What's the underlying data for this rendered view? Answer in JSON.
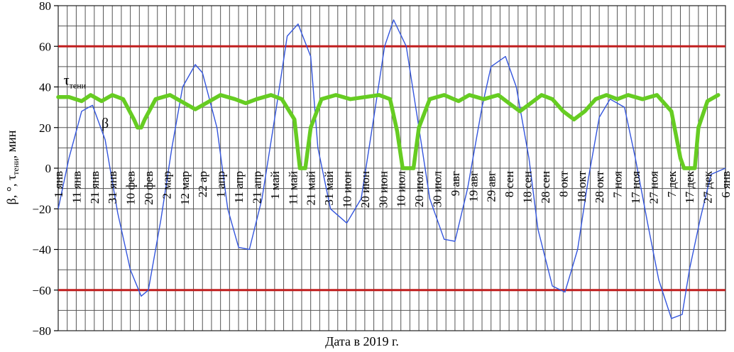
{
  "chart_data": {
    "type": "line",
    "title": "",
    "xlabel": "Дата в 2019 г.",
    "ylabel": {
      "main": "β, °, τ",
      "subscript": "тени",
      "suffix": ", мин"
    },
    "ylim": [
      -80,
      80
    ],
    "yticks": [
      -80,
      -60,
      -40,
      -20,
      0,
      20,
      40,
      60,
      80
    ],
    "xlim_days": [
      0,
      370
    ],
    "grid": true,
    "x_tick_labels": [
      "1 янв",
      "11 янв",
      "21 янв",
      "31 янв",
      "10 фев",
      "20 фев",
      "2 мар",
      "12 мар",
      "22 ар",
      "1 апр",
      "11 апр",
      "21 апр",
      "1 май",
      "11 май",
      "21 май",
      "31 май",
      "10 июн",
      "20 июн",
      "30 июн",
      "10 июл",
      "20 июл",
      "30 июл",
      "9 авг",
      "19 авг",
      "29 авг",
      "8 сен",
      "18 сен",
      "28 сен",
      "8 окт",
      "18 окт",
      "28 окт",
      "7 ноя",
      "17 ноя",
      "27 ноя",
      "7 дек",
      "17 дек",
      "27 дек",
      "6 янв"
    ],
    "x_tick_days": [
      0,
      10,
      20,
      30,
      40,
      50,
      60,
      70,
      80,
      90,
      100,
      110,
      120,
      130,
      140,
      150,
      160,
      170,
      180,
      190,
      200,
      210,
      220,
      230,
      240,
      250,
      260,
      270,
      280,
      290,
      300,
      310,
      320,
      330,
      340,
      350,
      360,
      370
    ],
    "series": [
      {
        "name": "β",
        "color": "#3355dd",
        "style": "thin",
        "x": [
          0,
          6,
          13,
          19,
          26,
          33,
          40,
          46,
          50,
          57,
          63,
          69,
          76,
          80,
          88,
          94,
          100,
          106,
          113,
          121,
          127,
          133,
          140,
          144,
          151,
          160,
          168,
          175,
          181,
          186,
          193,
          200,
          206,
          214,
          220,
          227,
          235,
          240,
          248,
          254,
          261,
          266,
          274,
          281,
          288,
          294,
          300,
          306,
          314,
          320,
          327,
          333,
          340,
          346,
          350,
          356,
          362,
          370
        ],
        "y": [
          -20,
          5,
          28,
          31,
          14,
          -22,
          -50,
          -63,
          -60,
          -25,
          10,
          40,
          51,
          47,
          20,
          -20,
          -39,
          -40,
          -15,
          30,
          65,
          71,
          55,
          10,
          -20,
          -27,
          -15,
          25,
          60,
          73,
          60,
          20,
          -15,
          -35,
          -36,
          -10,
          30,
          50,
          55,
          40,
          5,
          -30,
          -58,
          -61,
          -40,
          -5,
          25,
          34,
          30,
          5,
          -28,
          -55,
          -74,
          -72,
          -50,
          -25,
          -3,
          0
        ]
      },
      {
        "name": "τтени",
        "color": "#66cc22",
        "style": "thick",
        "x": [
          0,
          6,
          13,
          18,
          24,
          30,
          36,
          42,
          44,
          46,
          48,
          54,
          62,
          70,
          76,
          82,
          90,
          98,
          104,
          110,
          118,
          124,
          131,
          134,
          137,
          140,
          146,
          154,
          162,
          170,
          178,
          184,
          188,
          191,
          194,
          197,
          200,
          206,
          214,
          222,
          228,
          236,
          244,
          250,
          256,
          262,
          268,
          274,
          280,
          286,
          292,
          298,
          304,
          310,
          316,
          324,
          332,
          340,
          345,
          347,
          350,
          353,
          355,
          360,
          366
        ],
        "y": [
          35,
          35,
          33,
          36,
          33,
          36,
          34,
          24,
          20,
          20,
          24,
          34,
          36,
          32,
          29,
          32,
          36,
          34,
          32,
          34,
          36,
          34,
          24,
          0,
          0,
          20,
          34,
          36,
          34,
          35,
          36,
          34,
          18,
          0,
          0,
          0,
          20,
          34,
          36,
          33,
          36,
          34,
          36,
          32,
          28,
          32,
          36,
          34,
          28,
          24,
          28,
          34,
          36,
          34,
          36,
          34,
          36,
          28,
          5,
          0,
          0,
          0,
          20,
          33,
          36
        ]
      },
      {
        "name": "",
        "color": "#c01e1e",
        "style": "reference",
        "x": [
          0,
          370
        ],
        "y": [
          60,
          60
        ]
      },
      {
        "name": "",
        "color": "#c01e1e",
        "style": "reference",
        "x": [
          0,
          370
        ],
        "y": [
          -60,
          -60
        ]
      }
    ],
    "series_labels": [
      {
        "series": 0,
        "text": "β",
        "at": {
          "x": 24,
          "y": 20
        }
      },
      {
        "series": 1,
        "text": "τ",
        "subscript": "тени",
        "at": {
          "x": 3,
          "y": 41
        }
      }
    ]
  }
}
